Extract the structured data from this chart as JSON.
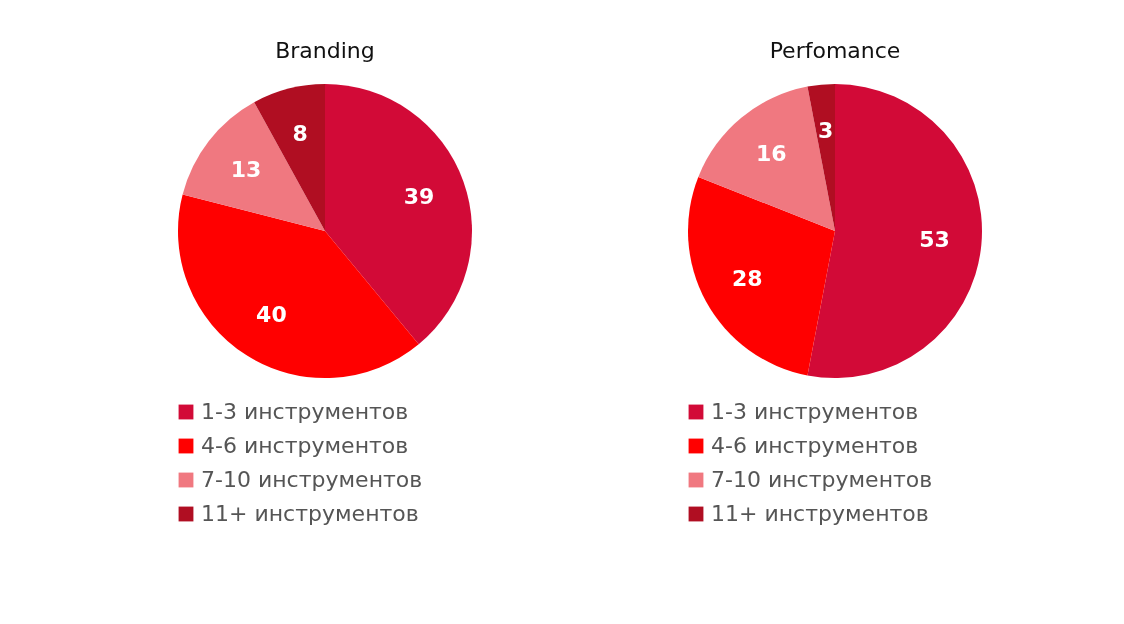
{
  "chart_data": [
    {
      "type": "pie",
      "title": "Branding",
      "categories": [
        "1-3 инструментов",
        "4-6 инструментов",
        "7-10 инструментов",
        "11+ инструментов"
      ],
      "values": [
        39,
        40,
        13,
        8
      ],
      "colors": [
        "#d20a37",
        "#ff0000",
        "#f07880",
        "#b00e22"
      ],
      "data_labels": true,
      "legend": "bottom"
    },
    {
      "type": "pie",
      "title": "Perfomance",
      "categories": [
        "1-3 инструментов",
        "4-6 инструментов",
        "7-10 инструментов",
        "11+ инструментов"
      ],
      "values": [
        53,
        28,
        16,
        3
      ],
      "colors": [
        "#d20a37",
        "#ff0000",
        "#f07880",
        "#b00e22"
      ],
      "data_labels": true,
      "legend": "bottom"
    }
  ]
}
